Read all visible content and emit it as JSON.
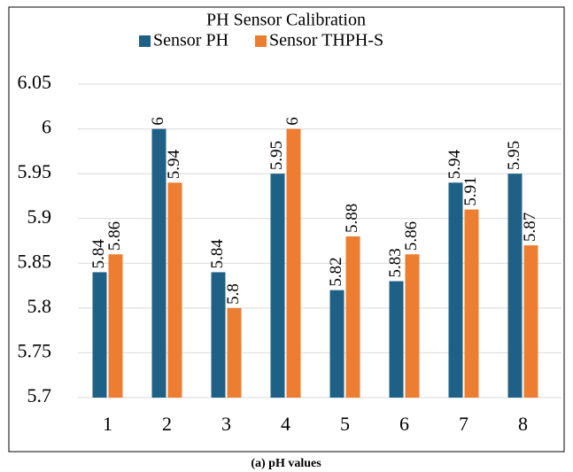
{
  "chart_data": {
    "type": "bar",
    "title": "PH Sensor Calibration",
    "categories": [
      "1",
      "2",
      "3",
      "4",
      "5",
      "6",
      "7",
      "8"
    ],
    "series": [
      {
        "name": "Sensor PH",
        "color": "#1f6186",
        "values": [
          5.84,
          6,
          5.84,
          5.95,
          5.82,
          5.83,
          5.94,
          5.95
        ]
      },
      {
        "name": "Sensor THPH-S",
        "color": "#ed7d31",
        "values": [
          5.86,
          5.94,
          5.8,
          6,
          5.88,
          5.86,
          5.91,
          5.87
        ]
      }
    ],
    "ylim": [
      5.7,
      6.05
    ],
    "yticks": [
      5.7,
      5.75,
      5.8,
      5.85,
      5.9,
      5.95,
      6,
      6.05
    ],
    "grid": true,
    "legend": "top"
  },
  "caption": "(a) pH values"
}
